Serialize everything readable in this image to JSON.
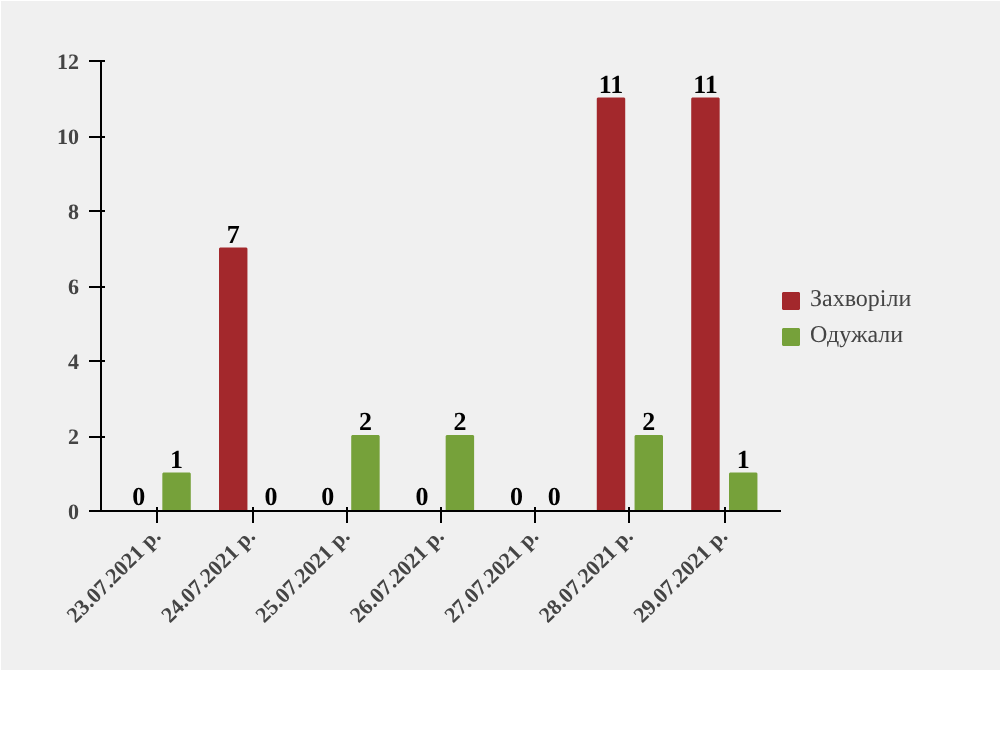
{
  "chart_data": {
    "type": "bar",
    "categories": [
      "23.07.2021 р.",
      "24.07.2021 р.",
      "25.07.2021 р.",
      "26.07.2021 р.",
      "27.07.2021 р.",
      "28.07.2021 р.",
      "29.07.2021 р."
    ],
    "series": [
      {
        "name": "Захворіли",
        "color": "#a3282c",
        "values": [
          0,
          7,
          0,
          0,
          0,
          11,
          11
        ]
      },
      {
        "name": "Одужали",
        "color": "#76a13a",
        "values": [
          1,
          0,
          2,
          2,
          0,
          2,
          1
        ]
      }
    ],
    "ylim": [
      0,
      12
    ],
    "yticks": [
      0,
      2,
      4,
      6,
      8,
      10,
      12
    ],
    "grid": false,
    "legend": "right",
    "data_labels": true
  }
}
